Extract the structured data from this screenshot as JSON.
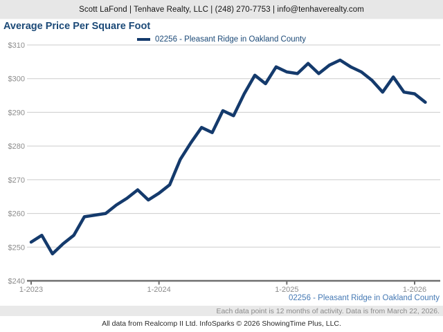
{
  "header": {
    "contact": "Scott LaFond | Tenhave Realty, LLC | (248) 270-7753 | info@tenhaverealty.com"
  },
  "title": "Average Price Per Square Foot",
  "colors": {
    "line": "#143a6c",
    "title_navy": "#1b4977",
    "series_footer_blue": "#4579b4",
    "gridline": "#cbcbcb",
    "axis": "#6f6f6f",
    "axis_label_gray": "#8c8c8c",
    "header_bar_gray": "#e7e7e7",
    "note_band_gray": "#e9e9e9"
  },
  "chart_data": {
    "type": "line",
    "title": "Average Price Per Square Foot",
    "legend_label": "02256 - Pleasant Ridge in Oakland County",
    "legend_position": "top-center",
    "grid": true,
    "ylabel": "",
    "xlabel": "",
    "ylim": [
      240,
      310
    ],
    "ytick_step": 10,
    "ytick_prefix": "$",
    "xticks": [
      "1-2023",
      "1-2024",
      "1-2025",
      "1-2026"
    ],
    "categories": [
      "1-2023",
      "2-2023",
      "3-2023",
      "4-2023",
      "5-2023",
      "6-2023",
      "7-2023",
      "8-2023",
      "9-2023",
      "10-2023",
      "11-2023",
      "12-2023",
      "1-2024",
      "2-2024",
      "3-2024",
      "4-2024",
      "5-2024",
      "6-2024",
      "7-2024",
      "8-2024",
      "9-2024",
      "10-2024",
      "11-2024",
      "12-2024",
      "1-2025",
      "2-2025",
      "3-2025",
      "4-2025",
      "5-2025",
      "6-2025",
      "7-2025",
      "8-2025",
      "9-2025",
      "10-2025",
      "11-2025",
      "12-2025",
      "1-2026",
      "2-2026"
    ],
    "values": [
      251.5,
      253.5,
      248,
      251,
      253.5,
      259,
      259.5,
      260,
      262.5,
      264.5,
      267,
      264,
      266,
      268.5,
      276,
      281,
      285.5,
      284,
      290.5,
      289,
      295.5,
      301,
      298.5,
      303.5,
      302,
      301.5,
      304.5,
      301.5,
      304,
      305.5,
      303.5,
      302,
      299.5,
      296,
      300.5,
      296,
      295.5,
      293
    ]
  },
  "footer": {
    "note": "Each data point is 12 months of activity. Data is from March 22, 2026.",
    "attribution": "All data from Realcomp II Ltd. InfoSparks © 2026 ShowingTime Plus, LLC."
  }
}
